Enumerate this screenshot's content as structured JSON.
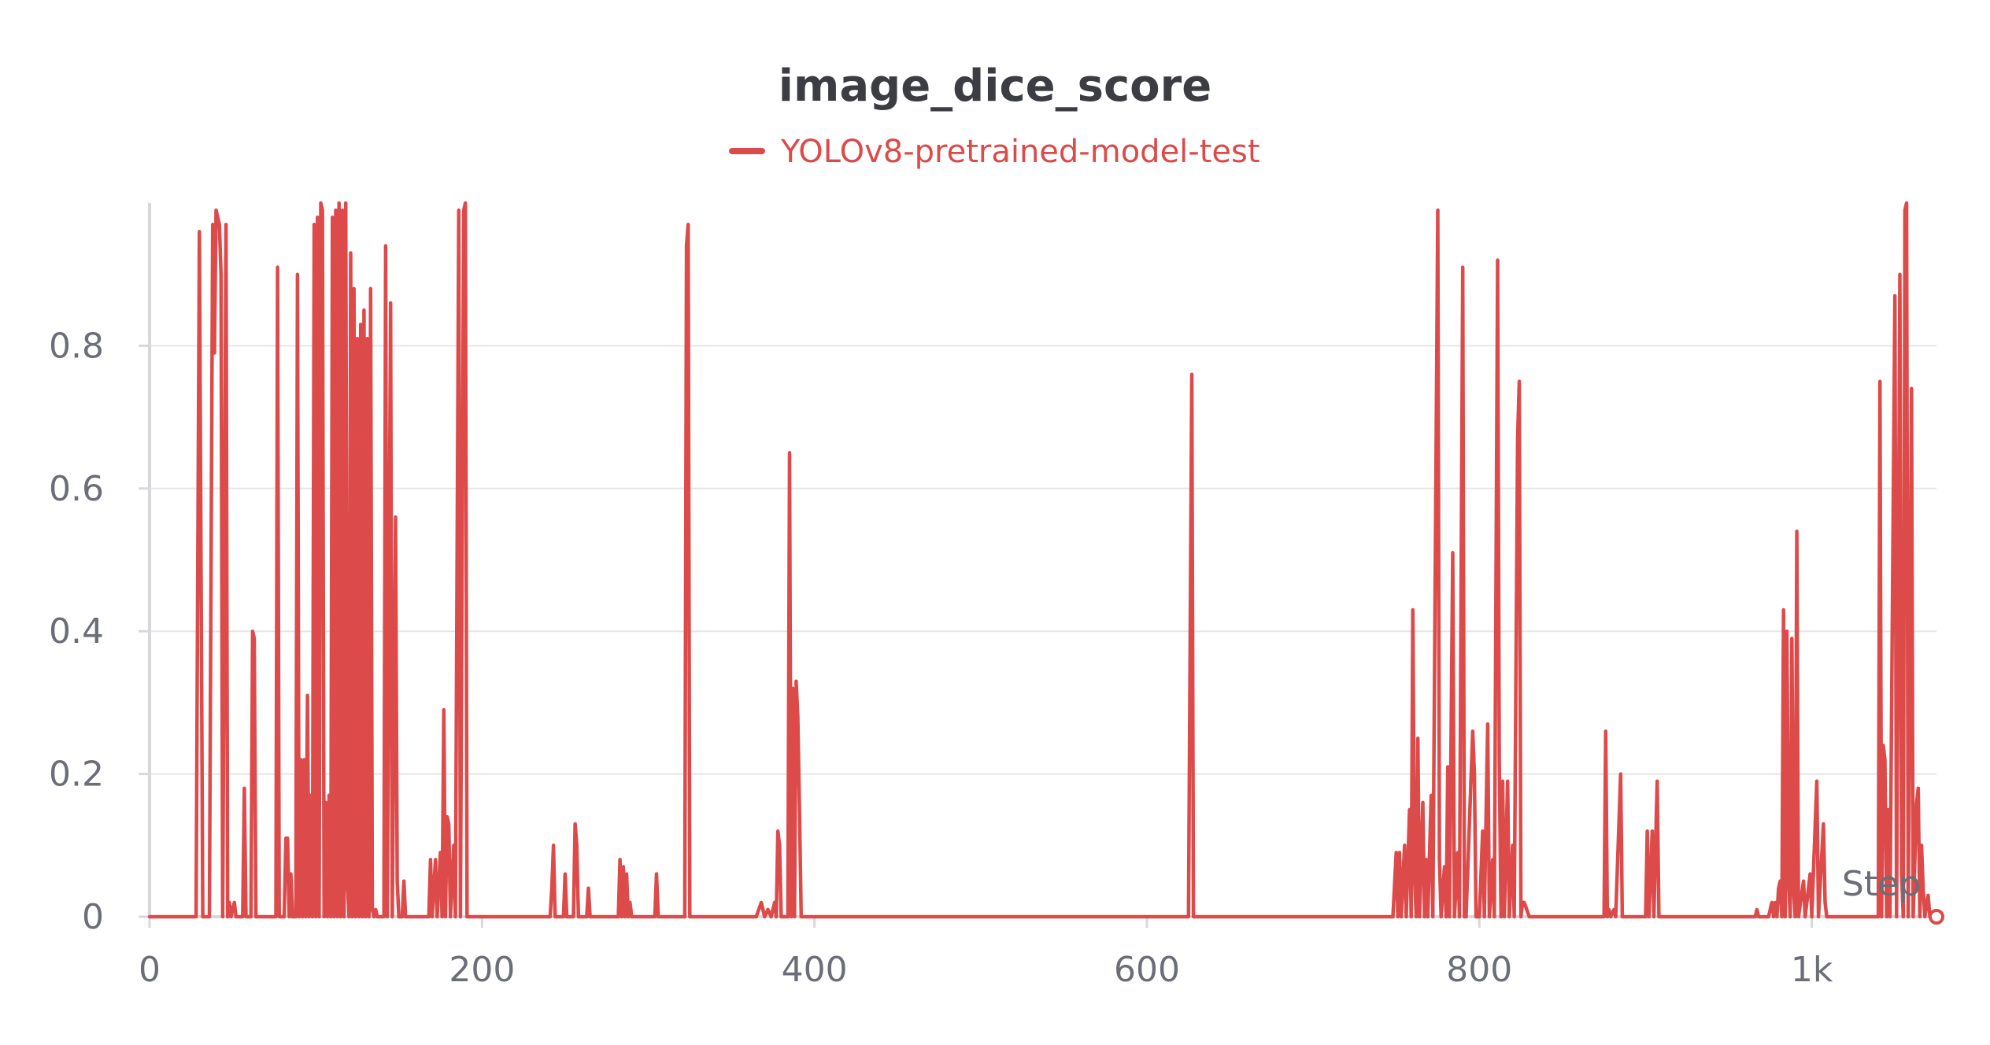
{
  "chart_data": {
    "type": "line",
    "title": "image_dice_score",
    "xlabel": "Step",
    "ylabel": "",
    "xlim": [
      0,
      1075
    ],
    "ylim": [
      0,
      1.0
    ],
    "x_ticks": [
      0,
      200,
      400,
      600,
      800,
      1000
    ],
    "x_tick_labels": [
      "0",
      "200",
      "400",
      "600",
      "800",
      "1k"
    ],
    "y_ticks": [
      0,
      0.2,
      0.4,
      0.6,
      0.8
    ],
    "y_tick_labels": [
      "0",
      "0.2",
      "0.4",
      "0.6",
      "0.8"
    ],
    "grid": true,
    "legend_position": "top-center",
    "colors": {
      "series": "#dc4a4a",
      "grid": "#e6e6e8",
      "axis": "#d7d8db",
      "text": "#6b6e76",
      "title": "#3b3d42"
    },
    "series": [
      {
        "name": "YOLOv8-pretrained-model-test",
        "points": [
          [
            0,
            0
          ],
          [
            28,
            0
          ],
          [
            30,
            0.96
          ],
          [
            32,
            0
          ],
          [
            36,
            0
          ],
          [
            38,
            0.97
          ],
          [
            39,
            0.79
          ],
          [
            40,
            0.99
          ],
          [
            41,
            0.98
          ],
          [
            42,
            0.97
          ],
          [
            43,
            0.9
          ],
          [
            44,
            0
          ],
          [
            46,
            0.97
          ],
          [
            47,
            0
          ],
          [
            48,
            0.02
          ],
          [
            49,
            0
          ],
          [
            51,
            0.02
          ],
          [
            52,
            0
          ],
          [
            56,
            0
          ],
          [
            57,
            0.18
          ],
          [
            58,
            0
          ],
          [
            61,
            0
          ],
          [
            62,
            0.4
          ],
          [
            63,
            0.39
          ],
          [
            64,
            0
          ],
          [
            68,
            0
          ],
          [
            70,
            0
          ],
          [
            76,
            0
          ],
          [
            77,
            0.91
          ],
          [
            78,
            0
          ],
          [
            81,
            0
          ],
          [
            82,
            0.11
          ],
          [
            83,
            0.11
          ],
          [
            84,
            0
          ],
          [
            85,
            0.06
          ],
          [
            86,
            0
          ],
          [
            88,
            0
          ],
          [
            89,
            0.9
          ],
          [
            90,
            0
          ],
          [
            91,
            0.22
          ],
          [
            92,
            0
          ],
          [
            93,
            0.22
          ],
          [
            94,
            0
          ],
          [
            95,
            0.31
          ],
          [
            96,
            0
          ],
          [
            97,
            0.17
          ],
          [
            98,
            0
          ],
          [
            99,
            0.97
          ],
          [
            100,
            0
          ],
          [
            101,
            0.98
          ],
          [
            102,
            0
          ],
          [
            103,
            1.0
          ],
          [
            104,
            0.99
          ],
          [
            105,
            0
          ],
          [
            106,
            0.16
          ],
          [
            107,
            0
          ],
          [
            108,
            0.17
          ],
          [
            109,
            0
          ],
          [
            110,
            0.98
          ],
          [
            111,
            0
          ],
          [
            112,
            0.99
          ],
          [
            113,
            0
          ],
          [
            114,
            1.0
          ],
          [
            115,
            0
          ],
          [
            116,
            0.99
          ],
          [
            117,
            0
          ],
          [
            118,
            1.0
          ],
          [
            119,
            0.05
          ],
          [
            120,
            0
          ],
          [
            121,
            0.93
          ],
          [
            122,
            0
          ],
          [
            123,
            0.88
          ],
          [
            124,
            0
          ],
          [
            125,
            0.81
          ],
          [
            126,
            0
          ],
          [
            127,
            0.83
          ],
          [
            128,
            0
          ],
          [
            129,
            0.85
          ],
          [
            130,
            0
          ],
          [
            131,
            0.81
          ],
          [
            132,
            0
          ],
          [
            133,
            0.88
          ],
          [
            134,
            0.01
          ],
          [
            135,
            0
          ],
          [
            136,
            0.01
          ],
          [
            137,
            0
          ],
          [
            141,
            0
          ],
          [
            142,
            0.94
          ],
          [
            143,
            0
          ],
          [
            145,
            0.86
          ],
          [
            146,
            0
          ],
          [
            148,
            0.56
          ],
          [
            149,
            0.05
          ],
          [
            150,
            0
          ],
          [
            152,
            0
          ],
          [
            153,
            0.05
          ],
          [
            154,
            0
          ],
          [
            168,
            0
          ],
          [
            169,
            0.08
          ],
          [
            170,
            0
          ],
          [
            172,
            0.08
          ],
          [
            173,
            0
          ],
          [
            175,
            0.09
          ],
          [
            176,
            0
          ],
          [
            177,
            0.29
          ],
          [
            178,
            0
          ],
          [
            179,
            0.14
          ],
          [
            180,
            0.13
          ],
          [
            181,
            0
          ],
          [
            183,
            0.1
          ],
          [
            184,
            0
          ],
          [
            186,
            0.99
          ],
          [
            187,
            0
          ],
          [
            189,
            0.99
          ],
          [
            190,
            1.0
          ],
          [
            191,
            0
          ],
          [
            193,
            0
          ],
          [
            241,
            0
          ],
          [
            242,
            0.04
          ],
          [
            243,
            0.1
          ],
          [
            244,
            0
          ],
          [
            249,
            0
          ],
          [
            250,
            0.06
          ],
          [
            251,
            0
          ],
          [
            255,
            0
          ],
          [
            256,
            0.13
          ],
          [
            257,
            0.1
          ],
          [
            258,
            0
          ],
          [
            263,
            0
          ],
          [
            264,
            0.04
          ],
          [
            265,
            0
          ],
          [
            278,
            0
          ],
          [
            282,
            0
          ],
          [
            283,
            0.08
          ],
          [
            284,
            0
          ],
          [
            285,
            0.07
          ],
          [
            286,
            0
          ],
          [
            287,
            0.06
          ],
          [
            288,
            0
          ],
          [
            289,
            0.02
          ],
          [
            290,
            0
          ],
          [
            304,
            0
          ],
          [
            305,
            0.06
          ],
          [
            306,
            0
          ],
          [
            322,
            0
          ],
          [
            323,
            0.94
          ],
          [
            324,
            0.97
          ],
          [
            325,
            0
          ],
          [
            365,
            0
          ],
          [
            368,
            0.02
          ],
          [
            370,
            0
          ],
          [
            372,
            0.01
          ],
          [
            374,
            0
          ],
          [
            376,
            0.02
          ],
          [
            377,
            0
          ],
          [
            378,
            0.12
          ],
          [
            379,
            0.1
          ],
          [
            380,
            0
          ],
          [
            384,
            0
          ],
          [
            385,
            0.65
          ],
          [
            386,
            0
          ],
          [
            387,
            0.32
          ],
          [
            388,
            0
          ],
          [
            389,
            0.33
          ],
          [
            390,
            0.28
          ],
          [
            391,
            0.15
          ],
          [
            392,
            0
          ],
          [
            396,
            0
          ],
          [
            625,
            0
          ],
          [
            627,
            0.76
          ],
          [
            628,
            0
          ],
          [
            748,
            0
          ],
          [
            750,
            0.09
          ],
          [
            751,
            0
          ],
          [
            752,
            0.09
          ],
          [
            753,
            0
          ],
          [
            755,
            0.1
          ],
          [
            756,
            0
          ],
          [
            758,
            0.15
          ],
          [
            759,
            0
          ],
          [
            760,
            0.43
          ],
          [
            761,
            0.06
          ],
          [
            762,
            0
          ],
          [
            763,
            0.25
          ],
          [
            764,
            0
          ],
          [
            766,
            0.16
          ],
          [
            767,
            0
          ],
          [
            768,
            0.08
          ],
          [
            769,
            0
          ],
          [
            771,
            0.17
          ],
          [
            772,
            0
          ],
          [
            775,
            0.99
          ],
          [
            776,
            0.08
          ],
          [
            777,
            0
          ],
          [
            779,
            0.07
          ],
          [
            780,
            0
          ],
          [
            781,
            0.21
          ],
          [
            782,
            0
          ],
          [
            784,
            0.51
          ],
          [
            785,
            0
          ],
          [
            787,
            0.09
          ],
          [
            788,
            0
          ],
          [
            790,
            0.91
          ],
          [
            791,
            0
          ],
          [
            792,
            0
          ],
          [
            796,
            0.26
          ],
          [
            797,
            0.2
          ],
          [
            798,
            0
          ],
          [
            800,
            0
          ],
          [
            802,
            0.12
          ],
          [
            803,
            0
          ],
          [
            805,
            0.27
          ],
          [
            806,
            0
          ],
          [
            808,
            0.08
          ],
          [
            809,
            0
          ],
          [
            811,
            0.92
          ],
          [
            812,
            0.22
          ],
          [
            813,
            0
          ],
          [
            814,
            0.19
          ],
          [
            815,
            0
          ],
          [
            817,
            0.19
          ],
          [
            818,
            0
          ],
          [
            820,
            0.1
          ],
          [
            821,
            0
          ],
          [
            823,
            0.67
          ],
          [
            824,
            0.75
          ],
          [
            825,
            0
          ],
          [
            826,
            0.02
          ],
          [
            827,
            0.02
          ],
          [
            830,
            0
          ],
          [
            875,
            0
          ],
          [
            876,
            0.26
          ],
          [
            877,
            0
          ],
          [
            878,
            0.01
          ],
          [
            879,
            0
          ],
          [
            881,
            0.01
          ],
          [
            882,
            0
          ],
          [
            885,
            0.2
          ],
          [
            886,
            0
          ],
          [
            900,
            0
          ],
          [
            901,
            0.12
          ],
          [
            902,
            0
          ],
          [
            904,
            0.12
          ],
          [
            905,
            0
          ],
          [
            907,
            0.19
          ],
          [
            908,
            0
          ],
          [
            966,
            0
          ],
          [
            967,
            0.01
          ],
          [
            968,
            0
          ],
          [
            974,
            0
          ],
          [
            975,
            0.01
          ],
          [
            976,
            0.02
          ],
          [
            977,
            0
          ],
          [
            978,
            0.02
          ],
          [
            979,
            0
          ],
          [
            980,
            0.04
          ],
          [
            981,
            0.05
          ],
          [
            982,
            0
          ],
          [
            983,
            0.43
          ],
          [
            984,
            0
          ],
          [
            985,
            0.4
          ],
          [
            986,
            0.05
          ],
          [
            987,
            0
          ],
          [
            988,
            0.39
          ],
          [
            989,
            0.04
          ],
          [
            990,
            0
          ],
          [
            991,
            0.54
          ],
          [
            992,
            0
          ],
          [
            995,
            0.05
          ],
          [
            996,
            0
          ],
          [
            999,
            0.06
          ],
          [
            1000,
            0
          ],
          [
            1003,
            0.19
          ],
          [
            1004,
            0
          ],
          [
            1007,
            0.13
          ],
          [
            1008,
            0.02
          ],
          [
            1009,
            0
          ],
          [
            1040,
            0
          ],
          [
            1041,
            0.75
          ],
          [
            1042,
            0
          ],
          [
            1043,
            0.24
          ],
          [
            1044,
            0.22
          ],
          [
            1045,
            0
          ],
          [
            1046,
            0.15
          ],
          [
            1047,
            0
          ],
          [
            1050,
            0.87
          ],
          [
            1051,
            0
          ],
          [
            1053,
            0.9
          ],
          [
            1054,
            0.06
          ],
          [
            1055,
            0
          ],
          [
            1056,
            0.99
          ],
          [
            1057,
            1.0
          ],
          [
            1058,
            0
          ],
          [
            1060,
            0.74
          ],
          [
            1061,
            0
          ],
          [
            1063,
            0.16
          ],
          [
            1064,
            0.18
          ],
          [
            1065,
            0
          ],
          [
            1066,
            0.1
          ],
          [
            1067,
            0.04
          ],
          [
            1068,
            0
          ],
          [
            1070,
            0.03
          ],
          [
            1071,
            0
          ],
          [
            1075,
            0
          ]
        ]
      }
    ]
  }
}
